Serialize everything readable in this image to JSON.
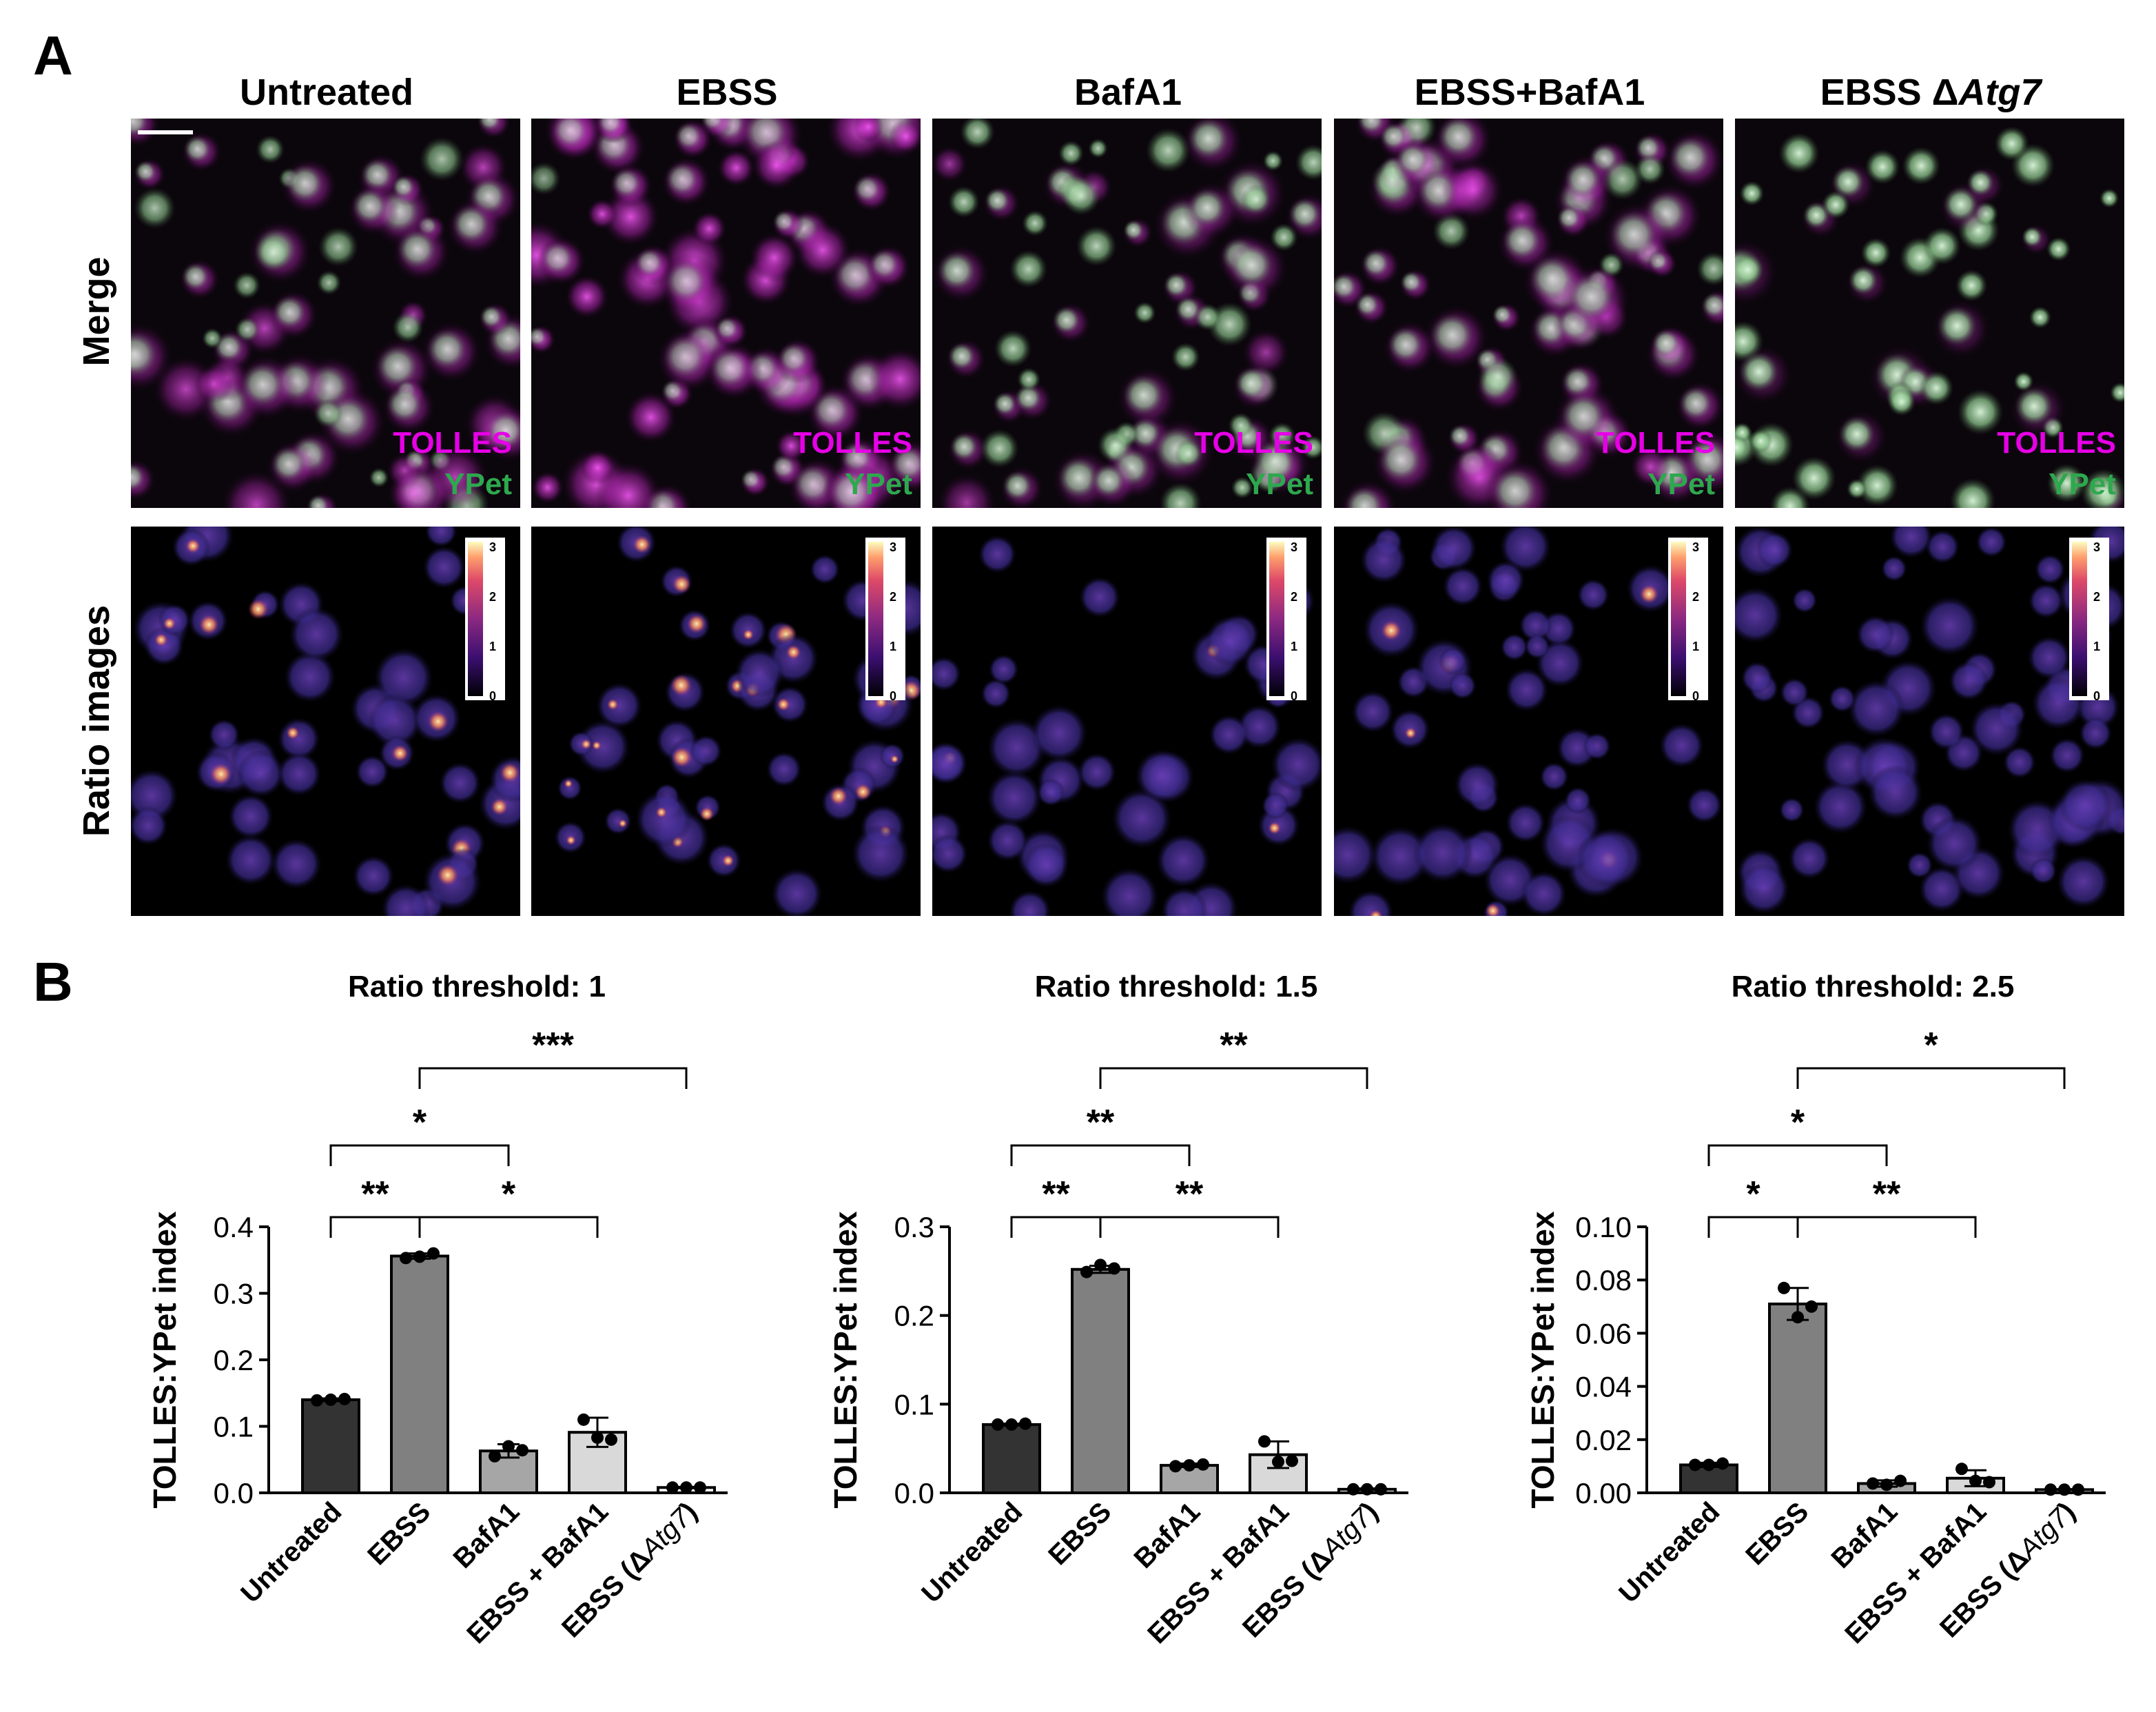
{
  "panel_a": {
    "label": "A",
    "conditions": [
      "Untreated",
      "EBSS",
      "BafA1",
      "EBSS+BafA1",
      "EBSS ",
      "Atg7"
    ],
    "delta_symbol": "Δ",
    "row_labels": [
      "Merge",
      "Ratio images"
    ],
    "channel_labels": {
      "tolles": "TOLLES",
      "ypet": "YPet"
    },
    "colorbar_ticks": [
      "3",
      "2",
      "1",
      "0"
    ],
    "colors": {
      "tolles": "#e600e6",
      "ypet": "#2ea84e"
    }
  },
  "panel_b": {
    "label": "B",
    "ylabel": "TOLLES:YPet index",
    "xlabels_plain": [
      "Untreated",
      "EBSS",
      "BafA1",
      "EBSS + BafA1"
    ],
    "xlabel_last": {
      "pre": "EBSS (",
      "delta": "Δ",
      "italic": "Atg7",
      "post": ")"
    },
    "bar_colors": [
      "#333333",
      "#808080",
      "#a6a6a6",
      "#d9d9d9",
      "#ffffff"
    ]
  },
  "chart_data": [
    {
      "type": "bar",
      "title": "Ratio threshold: 1",
      "ylabel": "TOLLES:YPet index",
      "categories": [
        "Untreated",
        "EBSS",
        "BafA1",
        "EBSS + BafA1",
        "EBSS (ΔAtg7)"
      ],
      "values": [
        0.14,
        0.356,
        0.063,
        0.091,
        0.008
      ],
      "errors": [
        0.002,
        0.004,
        0.01,
        0.022,
        0.001
      ],
      "points": [
        [
          0.139,
          0.14,
          0.141
        ],
        [
          0.353,
          0.355,
          0.36
        ],
        [
          0.055,
          0.07,
          0.064
        ],
        [
          0.11,
          0.083,
          0.08
        ],
        [
          0.008,
          0.008,
          0.008
        ]
      ],
      "ylim": [
        0,
        0.4
      ],
      "yticks": [
        "0.0",
        "0.1",
        "0.2",
        "0.3",
        "0.4"
      ],
      "significance": [
        {
          "from": 0,
          "to": 1,
          "label": "**",
          "level": 1
        },
        {
          "from": 1,
          "to": 3,
          "label": "*",
          "level": 1
        },
        {
          "from": 0,
          "to": 2,
          "label": "*",
          "level": 2
        },
        {
          "from": 1,
          "to": 4,
          "label": "***",
          "level": 3
        }
      ]
    },
    {
      "type": "bar",
      "title": "Ratio threshold: 1.5",
      "ylabel": "TOLLES:YPet index",
      "categories": [
        "Untreated",
        "EBSS",
        "BafA1",
        "EBSS + BafA1",
        "EBSS (ΔAtg7)"
      ],
      "values": [
        0.077,
        0.252,
        0.031,
        0.043,
        0.004
      ],
      "errors": [
        0.001,
        0.004,
        0.002,
        0.015,
        0.001
      ],
      "points": [
        [
          0.077,
          0.077,
          0.078
        ],
        [
          0.249,
          0.257,
          0.253
        ],
        [
          0.03,
          0.031,
          0.032
        ],
        [
          0.058,
          0.035,
          0.036
        ],
        [
          0.004,
          0.004,
          0.004
        ]
      ],
      "ylim": [
        0,
        0.3
      ],
      "yticks": [
        "0.0",
        "0.1",
        "0.2",
        "0.3"
      ],
      "significance": [
        {
          "from": 0,
          "to": 1,
          "label": "**",
          "level": 1
        },
        {
          "from": 1,
          "to": 3,
          "label": "**",
          "level": 1
        },
        {
          "from": 0,
          "to": 2,
          "label": "**",
          "level": 2
        },
        {
          "from": 1,
          "to": 4,
          "label": "**",
          "level": 3
        }
      ]
    },
    {
      "type": "bar",
      "title": "Ratio threshold: 2.5",
      "ylabel": "TOLLES:YPet index",
      "categories": [
        "Untreated",
        "EBSS",
        "BafA1",
        "EBSS + BafA1",
        "EBSS (ΔAtg7)"
      ],
      "values": [
        0.0105,
        0.071,
        0.0035,
        0.0055,
        0.0012
      ],
      "errors": [
        0.0008,
        0.006,
        0.0012,
        0.003,
        0.0002
      ],
      "points": [
        [
          0.0105,
          0.0105,
          0.011
        ],
        [
          0.077,
          0.066,
          0.07
        ],
        [
          0.0035,
          0.003,
          0.0045
        ],
        [
          0.009,
          0.0045,
          0.004
        ],
        [
          0.0012,
          0.0012,
          0.0012
        ]
      ],
      "ylim": [
        0,
        0.1
      ],
      "yticks": [
        "0.00",
        "0.02",
        "0.04",
        "0.06",
        "0.08",
        "0.10"
      ],
      "significance": [
        {
          "from": 0,
          "to": 1,
          "label": "*",
          "level": 1
        },
        {
          "from": 1,
          "to": 3,
          "label": "**",
          "level": 1
        },
        {
          "from": 0,
          "to": 2,
          "label": "*",
          "level": 2
        },
        {
          "from": 1,
          "to": 4,
          "label": "*",
          "level": 3
        }
      ]
    }
  ]
}
